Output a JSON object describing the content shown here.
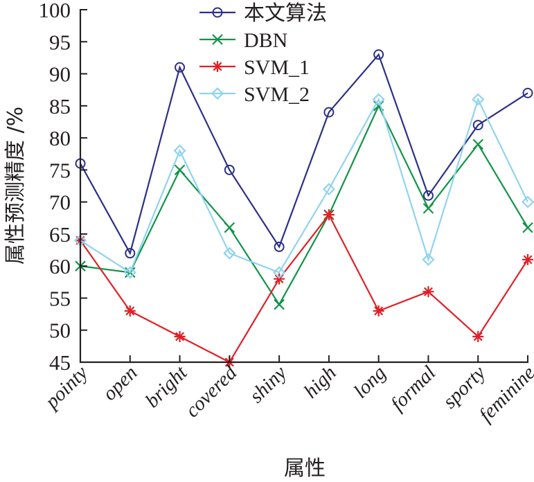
{
  "chart_data": {
    "type": "line",
    "title": "",
    "xlabel": "属性",
    "ylabel": "属性预测精度 /%",
    "ylim": [
      45,
      100
    ],
    "yticks": [
      "45",
      "50",
      "55",
      "60",
      "65",
      "70",
      "75",
      "80",
      "85",
      "90",
      "95",
      "100"
    ],
    "categories": [
      "pointy",
      "open",
      "bright",
      "covered",
      "shiny",
      "high",
      "long",
      "formal",
      "sporty",
      "feminine"
    ],
    "grid": false,
    "legend_position": "top-center",
    "series": [
      {
        "name": "本文算法",
        "color": "#2b2f86",
        "marker": "circle",
        "values": [
          76,
          62,
          91,
          75,
          63,
          84,
          93,
          71,
          82,
          87
        ]
      },
      {
        "name": "DBN",
        "color": "#0f9447",
        "marker": "x",
        "values": [
          60,
          59,
          75,
          66,
          54,
          68,
          85,
          69,
          79,
          66
        ]
      },
      {
        "name": "SVM_1",
        "color": "#e21f26",
        "marker": "asterisk",
        "values": [
          64,
          53,
          49,
          45,
          58,
          68,
          53,
          56,
          49,
          61
        ]
      },
      {
        "name": "SVM_2",
        "color": "#8fd3f0",
        "marker": "diamond",
        "values": [
          64,
          59,
          78,
          62,
          59,
          72,
          86,
          61,
          86,
          70
        ]
      }
    ]
  }
}
